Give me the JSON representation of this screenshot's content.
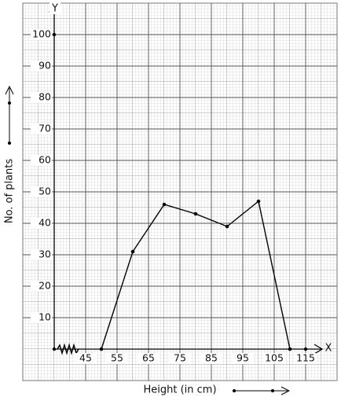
{
  "chart_data": {
    "type": "line",
    "x_label": "Height (in cm)",
    "y_label": "No. of plants",
    "x_axis_name": "X",
    "y_axis_name": "Y",
    "x": [
      50,
      60,
      70,
      80,
      90,
      100,
      110
    ],
    "values": [
      0,
      31,
      46,
      43,
      39,
      47,
      0
    ],
    "color": "#000000",
    "xlim": [
      35,
      120
    ],
    "ylim": [
      0,
      110
    ],
    "xticks": [
      45,
      55,
      65,
      75,
      85,
      95,
      105,
      115
    ],
    "yticks": [
      10,
      20,
      30,
      40,
      50,
      60,
      70,
      80,
      90,
      100
    ],
    "grid": true
  }
}
